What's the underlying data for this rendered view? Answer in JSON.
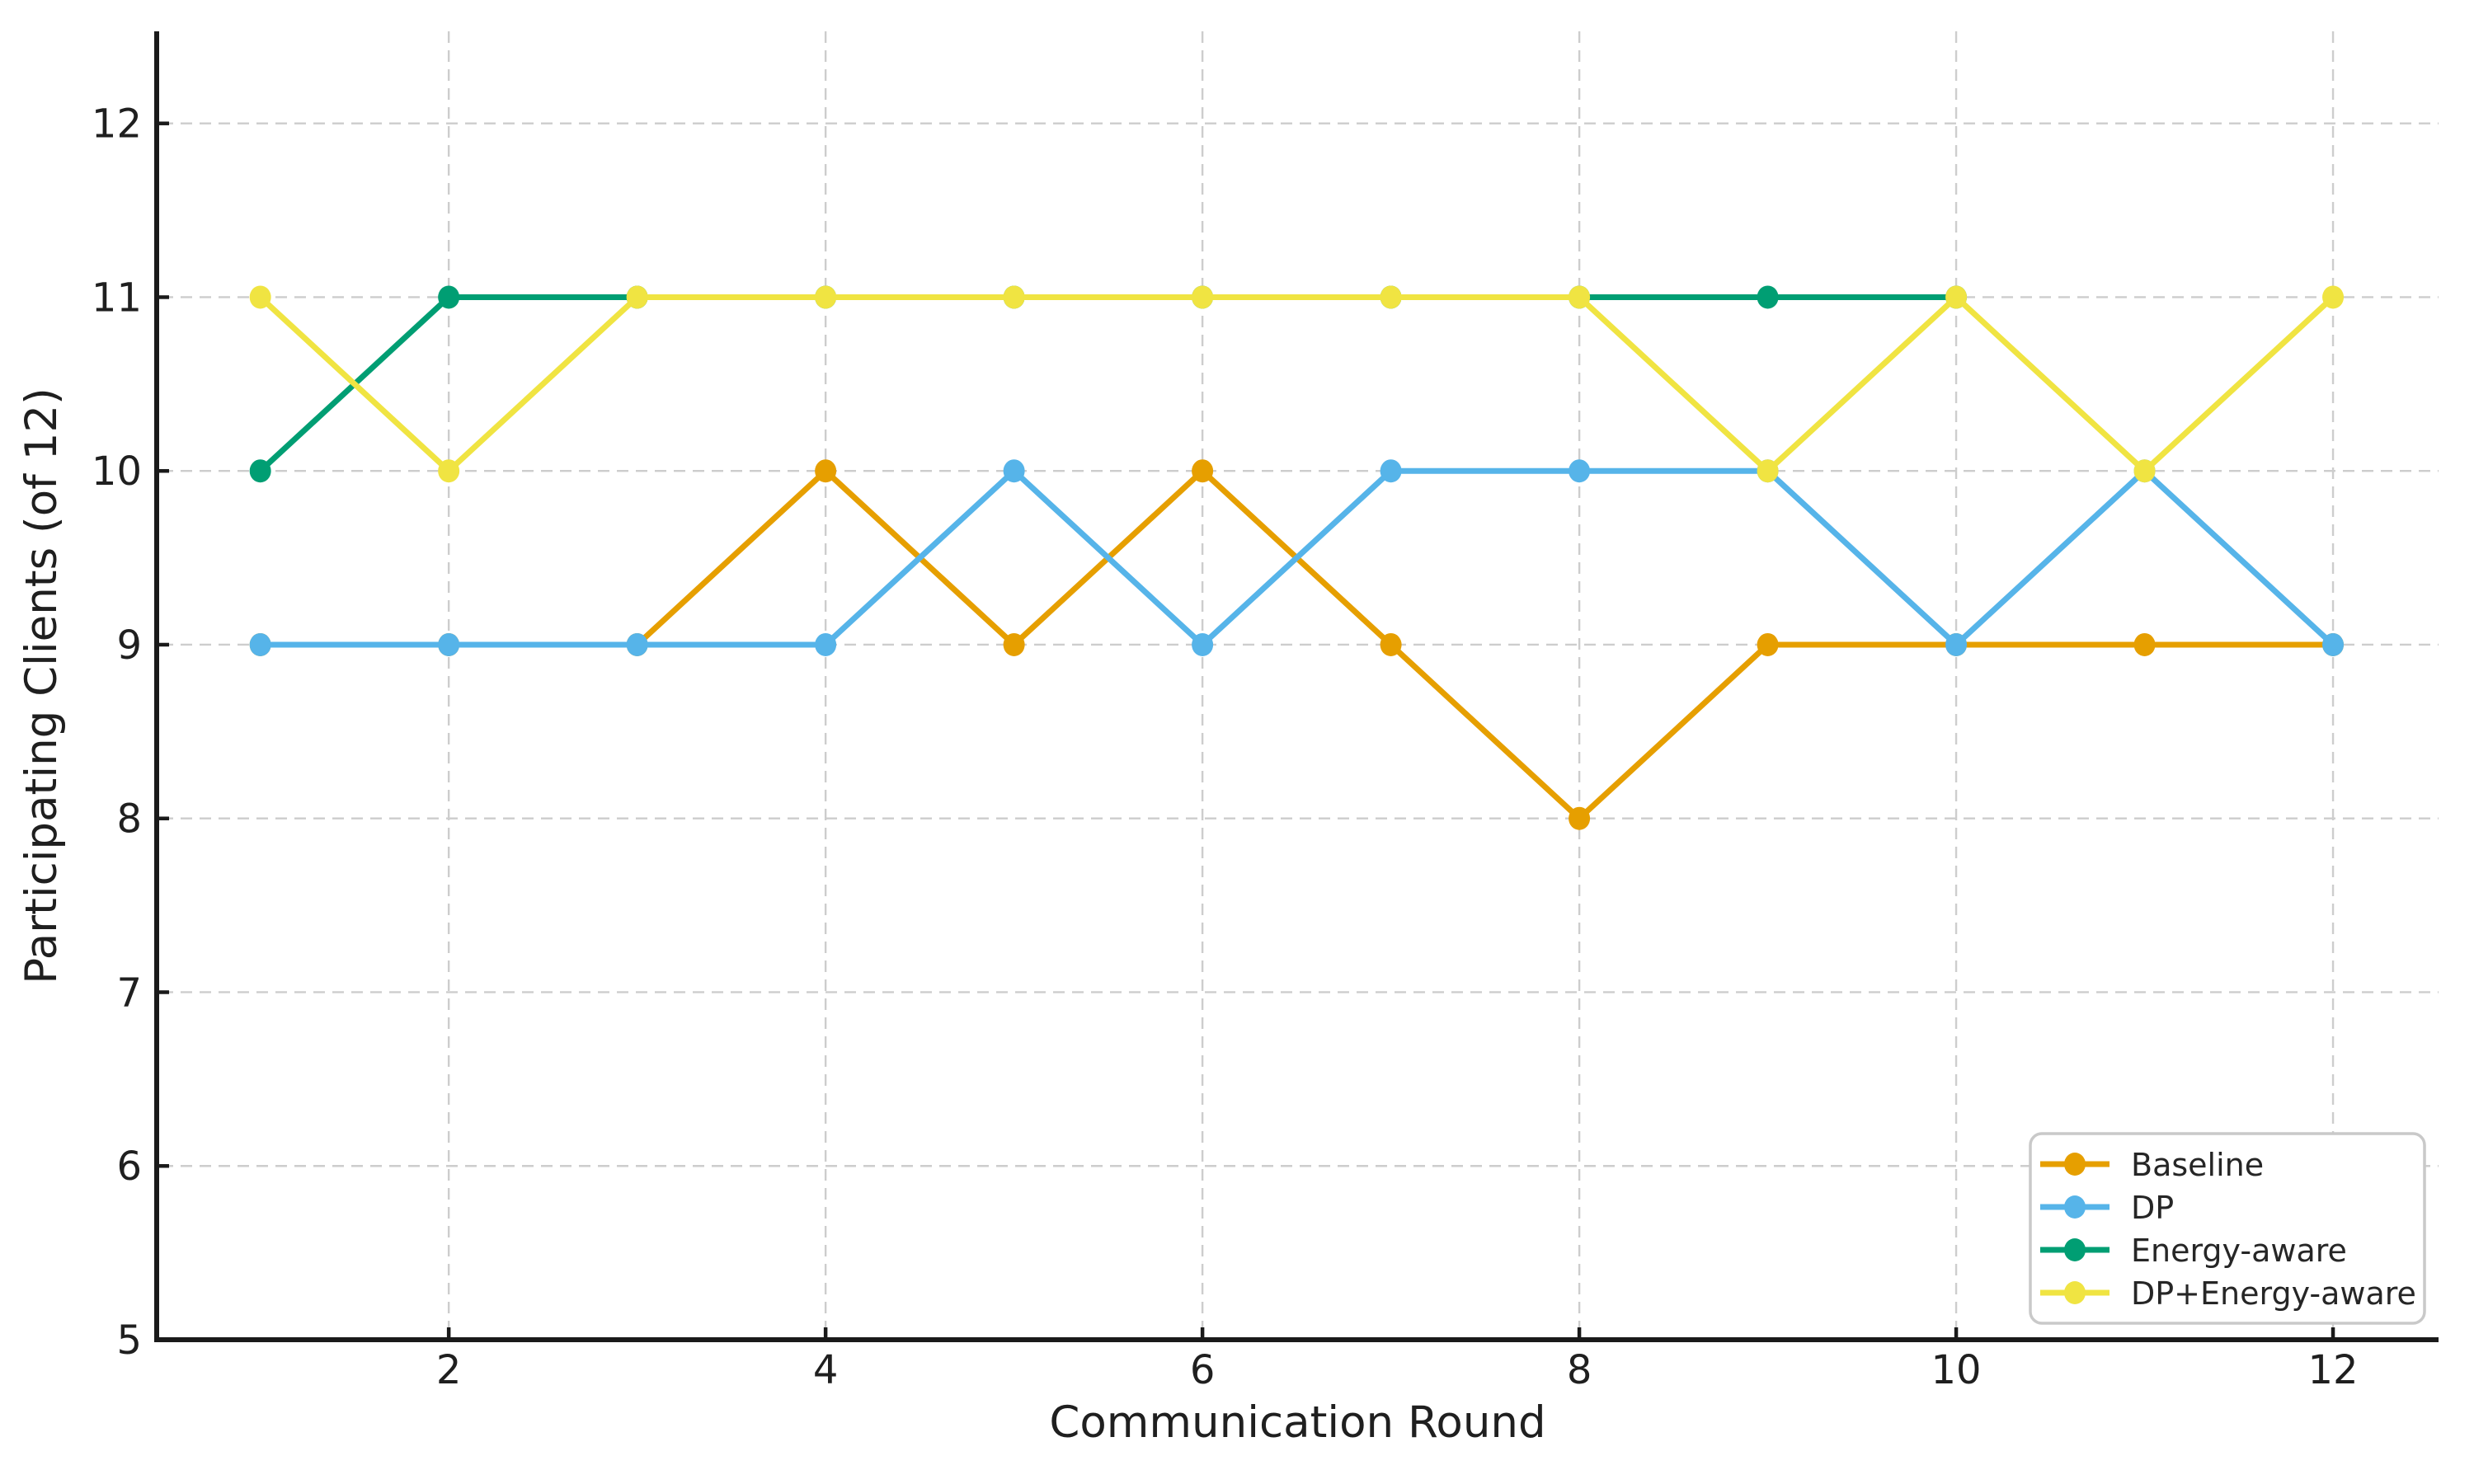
{
  "figure": {
    "background": "#ffffff"
  },
  "chart_data": {
    "type": "line",
    "title": "",
    "xlabel": "Communication Round",
    "ylabel": "Participating Clients (of 12)",
    "x": [
      1,
      2,
      3,
      4,
      5,
      6,
      7,
      8,
      9,
      10,
      11,
      12
    ],
    "xticks": [
      2,
      4,
      6,
      8,
      10,
      12
    ],
    "yticks": [
      5,
      6,
      7,
      8,
      9,
      10,
      11,
      12
    ],
    "xtick_labels": [
      "2",
      "4",
      "6",
      "8",
      "10",
      "12"
    ],
    "ytick_labels": [
      "5",
      "6",
      "7",
      "8",
      "9",
      "10",
      "11",
      "12"
    ],
    "xlim": [
      0.45,
      12.56
    ],
    "ylim": [
      5,
      12.53
    ],
    "grid": true,
    "grid_color": "#cdcdcd",
    "grid_style": "dashed",
    "axis_color": "#1a1a1a",
    "text_color": "#1f1f1f",
    "marker": "circle",
    "series": [
      {
        "name": "Baseline",
        "color": "#E69F00",
        "values": [
          9,
          9,
          9,
          10,
          9,
          10,
          9,
          8,
          9,
          9,
          9,
          9
        ]
      },
      {
        "name": "DP",
        "color": "#56B4E9",
        "values": [
          9,
          9,
          9,
          9,
          10,
          9,
          10,
          10,
          10,
          9,
          10,
          9
        ]
      },
      {
        "name": "Energy-aware",
        "color": "#009E73",
        "values": [
          10,
          11,
          11,
          11,
          11,
          11,
          11,
          11,
          11,
          11,
          null,
          null
        ]
      },
      {
        "name": "DP+Energy-aware",
        "color": "#F0E442",
        "values": [
          11,
          10,
          11,
          11,
          11,
          11,
          11,
          11,
          10,
          11,
          10,
          11
        ]
      }
    ],
    "legend": {
      "position": "lower right",
      "background": "#ffffff",
      "border_color": "#c9c9c9",
      "text_color": "#262626",
      "entries": [
        "Baseline",
        "DP",
        "Energy-aware",
        "DP+Energy-aware"
      ]
    }
  }
}
